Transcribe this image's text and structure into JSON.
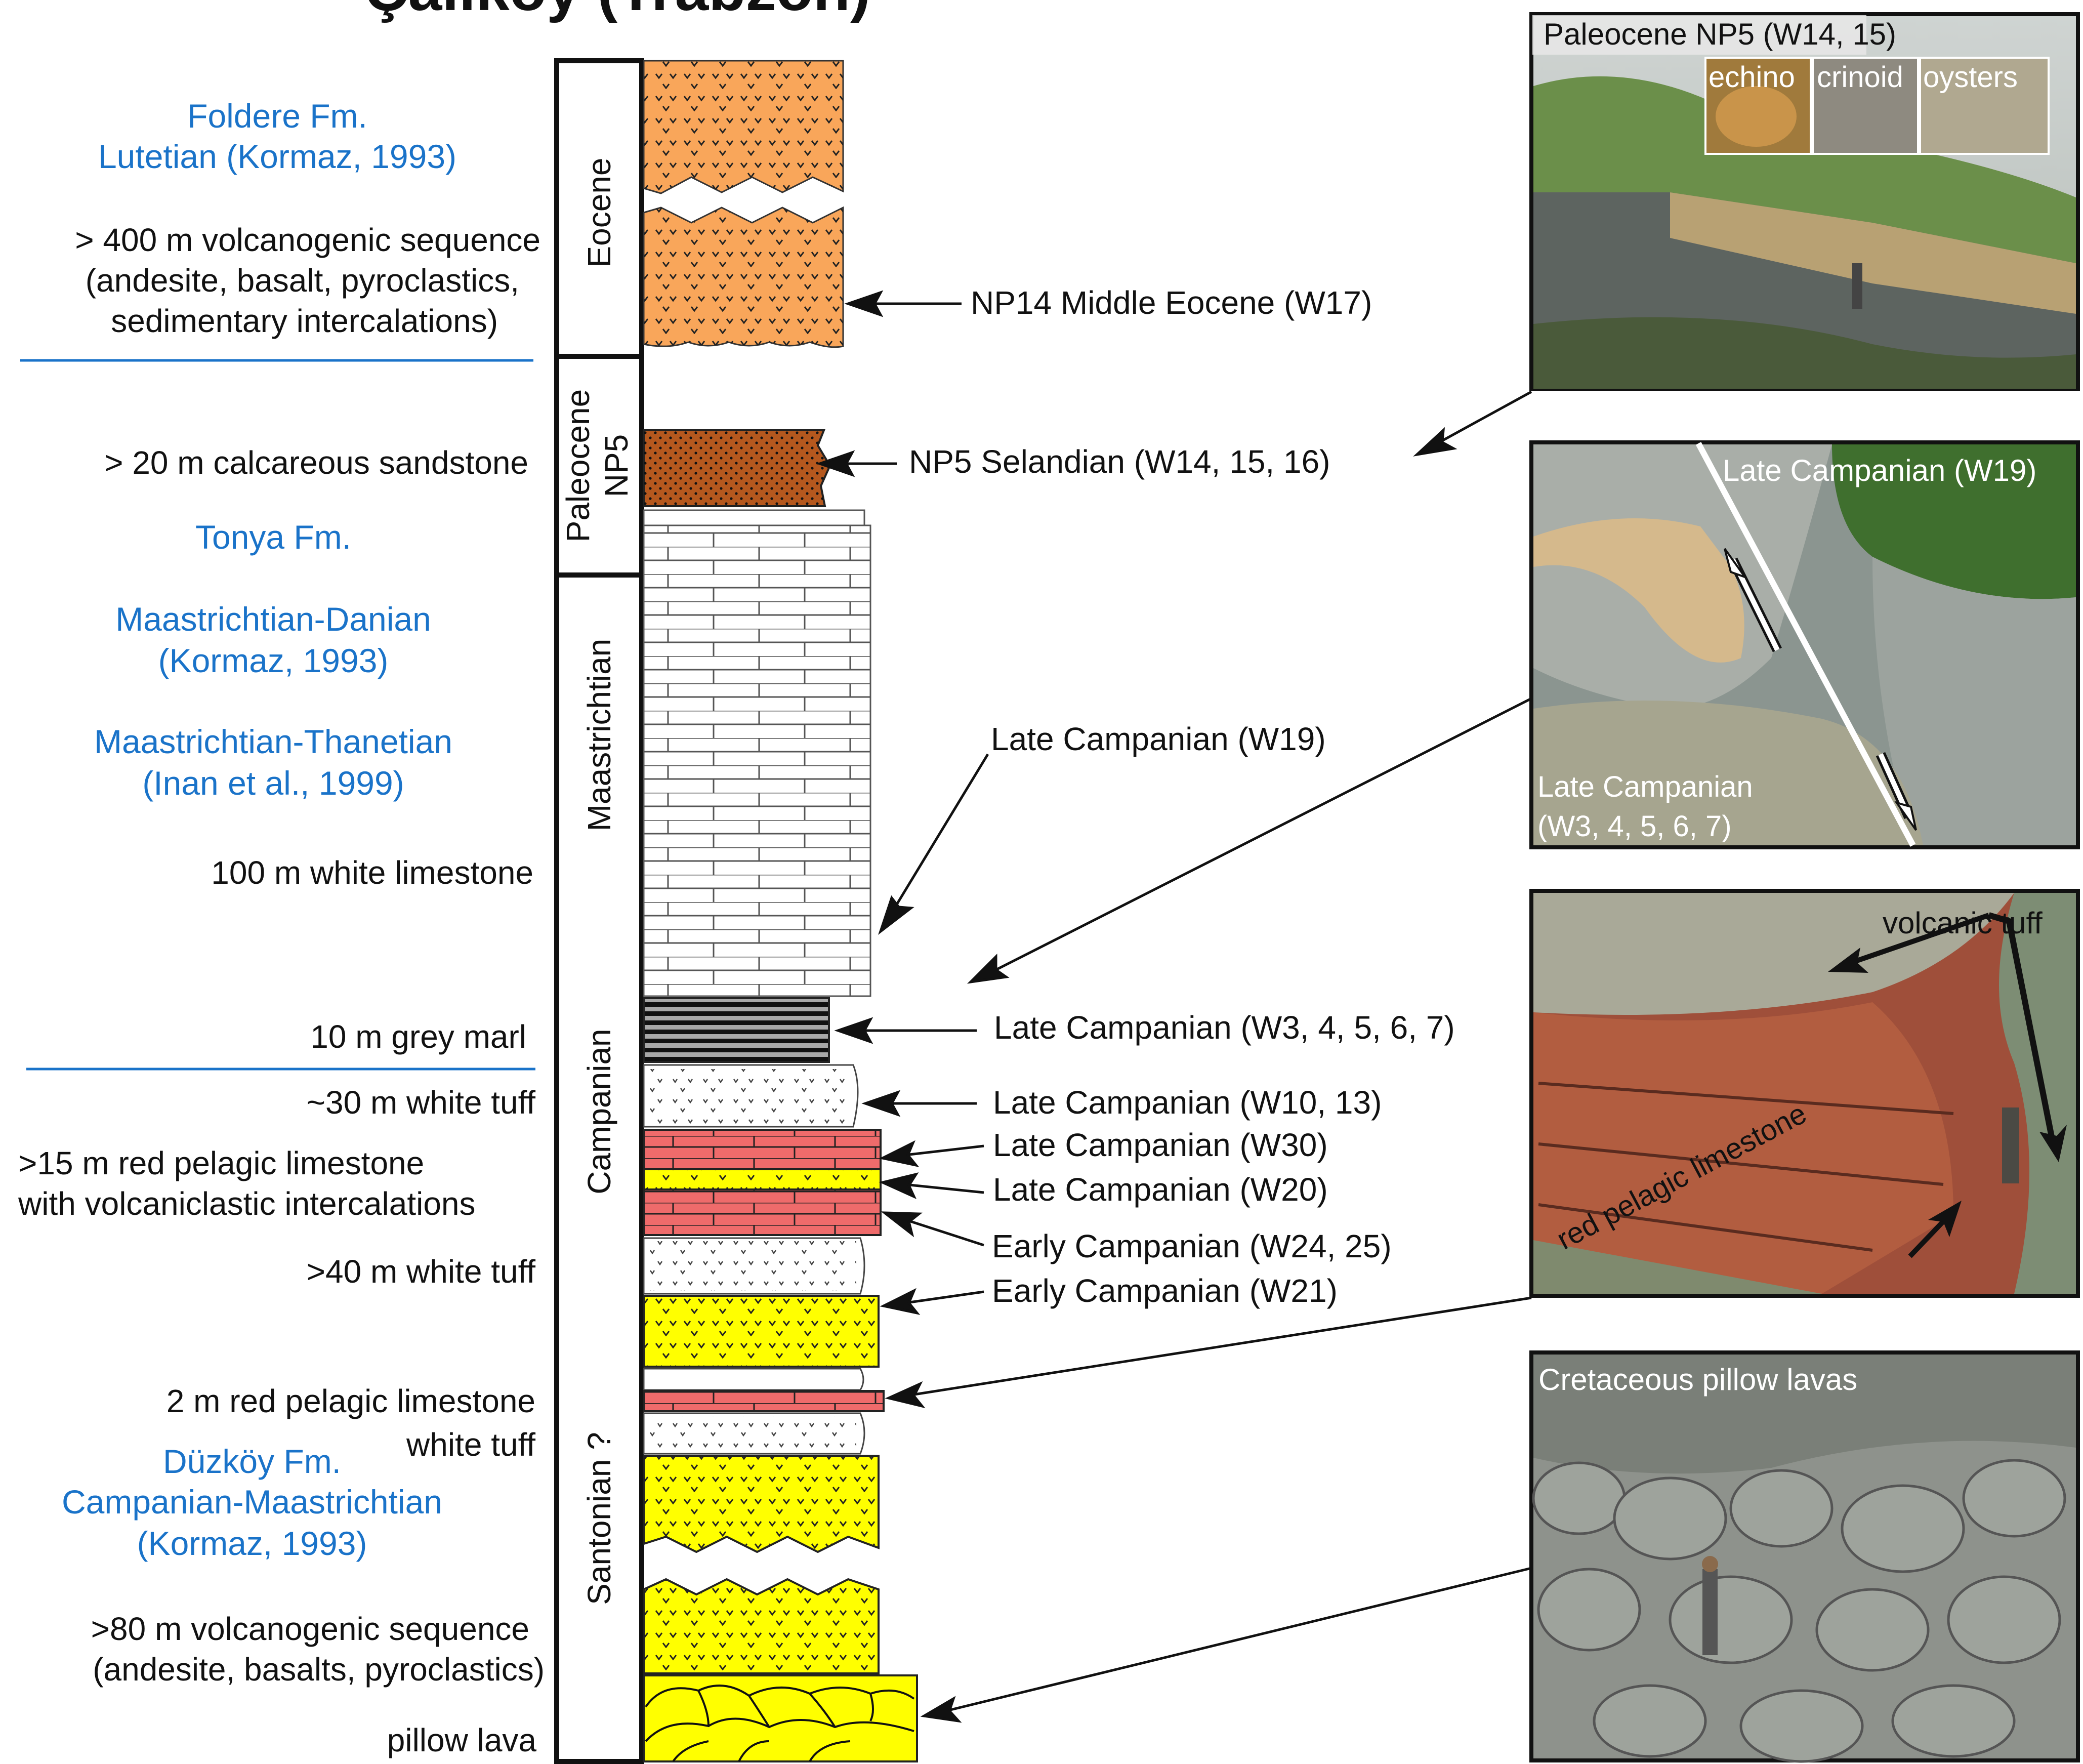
{
  "title": "Çalıköy (Trabzon)",
  "formations": {
    "foldere": {
      "name": "Foldere Fm.",
      "age": "Lutetian (Kormaz, 1993)"
    },
    "tonya": {
      "name": "Tonya Fm.",
      "age1": "Maastrichtian-Danian",
      "ref1": "(Kormaz, 1993)",
      "age2": "Maastrichtian-Thanetian",
      "ref2": "(Inan et al., 1999)"
    },
    "duzkoy": {
      "name": "Düzköy Fm.",
      "age": "Campanian-Maastrichtian",
      "ref": "(Kormaz, 1993)"
    }
  },
  "lithology_labels": {
    "volc_seq_1": "> 400 m volcanogenic sequence",
    "volc_seq_2": "(andesite, basalt, pyroclastics,",
    "volc_seq_3": "sedimentary intercalations)",
    "calc_sandstone": "> 20 m calcareous sandstone",
    "white_limestone": "100 m white limestone",
    "grey_marl": "10 m grey marl",
    "white_tuff_30": "~30 m white tuff",
    "red_lst_15_a": ">15 m red pelagic limestone",
    "red_lst_15_b": "with volcaniclastic intercalations",
    "white_tuff_40": ">40 m white tuff",
    "red_lst_2": "2 m red pelagic limestone",
    "white_tuff": "white tuff",
    "volc_seq_80_a": ">80 m volcanogenic sequence",
    "volc_seq_80_b": "(andesite, basalts, pyroclastics)",
    "pillow_lava": "pillow lava"
  },
  "stages": {
    "eocene": "Eocene",
    "paleocene": "Paleocene",
    "np5": "NP5",
    "maastrichtian": "Maastrichtian",
    "campanian": "Campanian",
    "santonian": "Santonian ?"
  },
  "ages": {
    "w17": "NP14 Middle Eocene (W17)",
    "w14": "NP5 Selandian (W14, 15, 16)",
    "w19": "Late Campanian (W19)",
    "w3": "Late Campanian (W3, 4, 5, 6, 7)",
    "w10": "Late Campanian (W10, 13)",
    "w30": "Late Campanian (W30)",
    "w20": "Late Campanian (W20)",
    "w24": "Early Campanian (W24, 25)",
    "w21": "Early Campanian (W21)"
  },
  "photos": {
    "p1": {
      "caption": "Paleocene NP5 (W14, 15)",
      "inset1": "echino",
      "inset2": "crinoid",
      "inset3": "oysters"
    },
    "p2": {
      "caption": "Late Campanian (W19)",
      "sub1": "Late Campanian",
      "sub2": "(W3, 4, 5, 6, 7)"
    },
    "p3": {
      "caption": "volcanic tuff",
      "rock": "red pelagic limestone"
    },
    "p4": {
      "caption": "Cretaceous pillow lavas"
    }
  },
  "colors": {
    "blue_text": "#1a73c9",
    "eocene_fill": "#f9a65a",
    "sandstone_fill": "#b5581e",
    "red_lst_fill": "#ef6b6b",
    "yellow_fill": "#ffff00",
    "marl_fill": "#9a9a9a"
  }
}
